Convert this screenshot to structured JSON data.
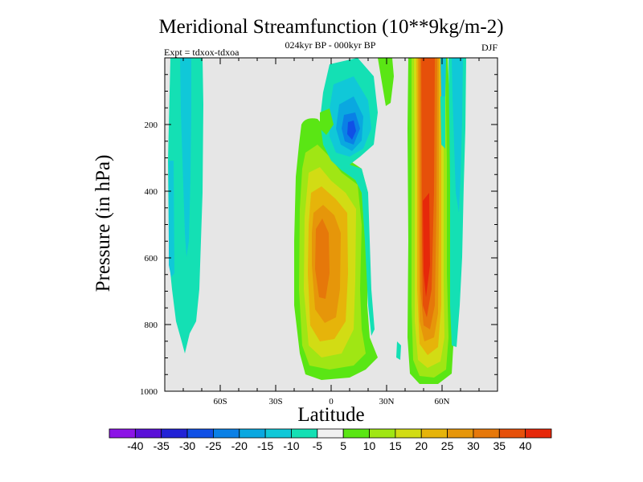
{
  "chart_data": {
    "type": "contour",
    "title": "Meridional Streamfunction (10**9kg/m-2)",
    "subtitle_left": "Expt = tdxox-tdxoa",
    "subtitle_center": "024kyr BP - 000kyr BP",
    "subtitle_right": "DJF",
    "xlabel": "Latitude",
    "ylabel": "Pressure (in hPa)",
    "xlim": [
      -90,
      90
    ],
    "ylim": [
      1000,
      0
    ],
    "y_reversed": true,
    "xticks": [
      {
        "value": -60,
        "label": "60S"
      },
      {
        "value": -30,
        "label": "30S"
      },
      {
        "value": 0,
        "label": "0"
      },
      {
        "value": 30,
        "label": "30N"
      },
      {
        "value": 60,
        "label": "60N"
      }
    ],
    "yticks": [
      {
        "value": 200,
        "label": "200"
      },
      {
        "value": 400,
        "label": "400"
      },
      {
        "value": 600,
        "label": "600"
      },
      {
        "value": 800,
        "label": "800"
      },
      {
        "value": 1000,
        "label": "1000"
      }
    ],
    "background_color": "#e6e6e6",
    "colorbar": {
      "levels": [
        -40,
        -35,
        -30,
        -25,
        -20,
        -15,
        -10,
        -5,
        5,
        10,
        15,
        20,
        25,
        30,
        35,
        40
      ],
      "labels": [
        "-40",
        "-35",
        "-30",
        "-25",
        "-20",
        "-15",
        "-10",
        "-5",
        "5",
        "10",
        "15",
        "20",
        "25",
        "30",
        "35",
        "40"
      ],
      "colors": [
        "#8c14e6",
        "#5a10d8",
        "#2222d6",
        "#1050e6",
        "#0a80e6",
        "#0aa8e0",
        "#10c8d8",
        "#14e0b4",
        "#f0f0f0",
        "#5ae614",
        "#a0e614",
        "#d2dc14",
        "#e6b40a",
        "#e6960a",
        "#e6780a",
        "#e6500a",
        "#e6280a"
      ]
    },
    "features": [
      {
        "name": "southern-high-latitude-negative-cell",
        "sign": "negative",
        "peak": -10,
        "lat_range": [
          -80,
          -66
        ],
        "pressure_range": [
          0,
          880
        ]
      },
      {
        "name": "tropical-positive-cell",
        "sign": "positive",
        "peak": 30,
        "lat_range": [
          -17,
          8
        ],
        "pressure_range": [
          190,
          960
        ]
      },
      {
        "name": "upper-tropical-negative-cell",
        "sign": "negative",
        "peak": -25,
        "lat_range": [
          -3,
          22
        ],
        "pressure_range": [
          0,
          880
        ]
      },
      {
        "name": "northern-midlatitude-positive-cell",
        "sign": "positive",
        "peak": 40,
        "lat_range": [
          46,
          64
        ],
        "pressure_range": [
          0,
          980
        ]
      },
      {
        "name": "northern-high-latitude-negative-band",
        "sign": "negative",
        "peak": -10,
        "lat_range": [
          64,
          72
        ],
        "pressure_range": [
          0,
          900
        ]
      }
    ]
  }
}
